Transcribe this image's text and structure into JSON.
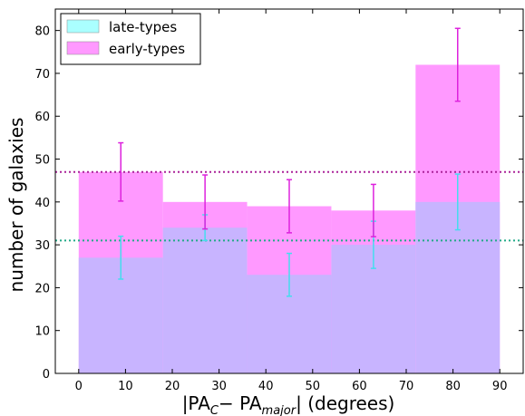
{
  "chart_data": {
    "type": "bar",
    "title": "",
    "xlabel": {
      "prefix": "|PA",
      "sub1": "C",
      "middle": "− PA",
      "sub2": "major",
      "suffix": "|  (degrees)"
    },
    "ylabel": "number of galaxies",
    "xlim": [
      -5,
      95
    ],
    "ylim": [
      0,
      85
    ],
    "xticks": [
      0,
      10,
      20,
      30,
      40,
      50,
      60,
      70,
      80,
      90
    ],
    "yticks": [
      0,
      10,
      20,
      30,
      40,
      50,
      60,
      70,
      80
    ],
    "bin_edges": [
      0,
      18,
      36,
      54,
      72,
      90
    ],
    "legend_position": "top-left",
    "series": [
      {
        "name": "late-types",
        "values": [
          27,
          34,
          23,
          30,
          40
        ],
        "errors": [
          5,
          3,
          5,
          5.5,
          6.5
        ],
        "mean": 31,
        "bar_color": "#aaffff",
        "error_color": "#44ddee",
        "mean_line_color": "#22aa88"
      },
      {
        "name": "early-types",
        "values": [
          47,
          40,
          39,
          38,
          72
        ],
        "errors": [
          6.8,
          6.3,
          6.2,
          6.1,
          8.5
        ],
        "mean": 47,
        "bar_color": "#ff99ff",
        "error_color": "#dd22dd",
        "mean_line_color": "#aa2299"
      }
    ],
    "overlap_color": "#c8b4ff",
    "grid": false
  }
}
